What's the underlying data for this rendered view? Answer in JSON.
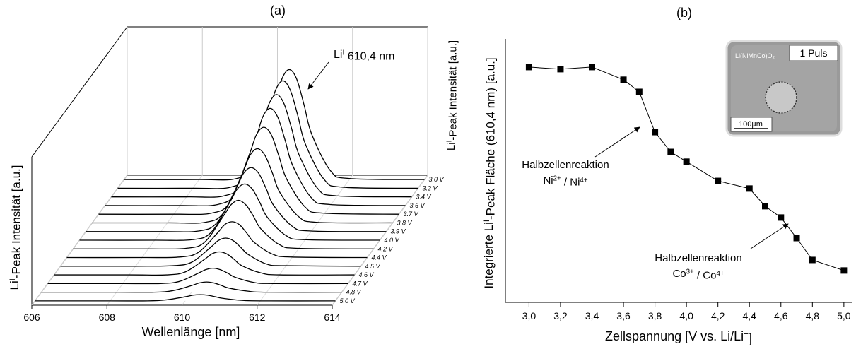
{
  "chart_data": [
    {
      "type": "waterfall",
      "title": "(a)",
      "xlabel": "Wellenlänge [nm]",
      "zlabel": [
        "Li",
        "I",
        "-Peak Intensität [a.u.]"
      ],
      "annotation": [
        "Li",
        "I",
        " 610,4 nm"
      ],
      "x": [
        606,
        608,
        609,
        609.5,
        610,
        610.2,
        610.4,
        610.6,
        610.8,
        611,
        611.5,
        612,
        614
      ],
      "xlim": [
        606,
        614
      ],
      "xticks": [
        606,
        608,
        610,
        612,
        614
      ],
      "zlim": [
        0,
        290
      ],
      "grid": true,
      "series": [
        {
          "name": "3.0 V",
          "color": "#000000",
          "values": [
            0,
            0,
            2,
            30,
            144,
            196,
            215,
            196,
            144,
            88,
            17,
            2,
            0
          ]
        },
        {
          "name": "3.2 V",
          "color": "#000000",
          "values": [
            0,
            0,
            2,
            29,
            141,
            191,
            210,
            191,
            141,
            86,
            17,
            2,
            0
          ]
        },
        {
          "name": "3.4 V",
          "color": "#000000",
          "values": [
            0,
            0,
            2,
            28,
            134,
            182,
            200,
            182,
            134,
            82,
            16,
            2,
            0
          ]
        },
        {
          "name": "3.6 V",
          "color": "#000000",
          "values": [
            0,
            0,
            2,
            27,
            127,
            173,
            190,
            173,
            127,
            78,
            15,
            2,
            0
          ]
        },
        {
          "name": "3.7 V",
          "color": "#000000",
          "values": [
            0,
            0,
            2,
            24,
            114,
            155,
            170,
            155,
            114,
            70,
            14,
            2,
            0
          ]
        },
        {
          "name": "3.8 V",
          "color": "#000000",
          "values": [
            0,
            0,
            1,
            20,
            97,
            132,
            145,
            132,
            97,
            59,
            12,
            1,
            0
          ]
        },
        {
          "name": "3.9 V",
          "color": "#000000",
          "values": [
            0,
            0,
            1,
            18,
            84,
            114,
            125,
            114,
            84,
            51,
            10,
            1,
            0
          ]
        },
        {
          "name": "4.0 V",
          "color": "#000000",
          "values": [
            0,
            0,
            1,
            15,
            74,
            100,
            110,
            100,
            74,
            45,
            9,
            1,
            0
          ]
        },
        {
          "name": "4.2 V",
          "color": "#000000",
          "values": [
            0,
            0,
            1,
            13,
            64,
            86,
            95,
            86,
            64,
            39,
            8,
            1,
            0
          ]
        },
        {
          "name": "4.4 V",
          "color": "#000000",
          "values": [
            0,
            0,
            1,
            10,
            47,
            64,
            70,
            64,
            47,
            29,
            6,
            1,
            0
          ]
        },
        {
          "name": "4.5 V",
          "color": "#000000",
          "values": [
            0,
            0,
            1,
            8,
            37,
            50,
            55,
            50,
            37,
            23,
            4,
            1,
            0
          ]
        },
        {
          "name": "4.6 V",
          "color": "#000000",
          "values": [
            0,
            0,
            0,
            6,
            30,
            41,
            45,
            41,
            30,
            18,
            4,
            0,
            0
          ]
        },
        {
          "name": "4.7 V",
          "color": "#000000",
          "values": [
            0,
            0,
            0,
            4,
            20,
            27,
            30,
            27,
            20,
            12,
            2,
            0,
            0
          ]
        },
        {
          "name": "4.8 V",
          "color": "#000000",
          "values": [
            0,
            0,
            0,
            3,
            13,
            18,
            20,
            18,
            13,
            8,
            2,
            0,
            0
          ]
        },
        {
          "name": "5.0 V",
          "color": "#000000",
          "values": [
            0,
            0,
            0,
            2,
            8,
            11,
            12,
            11,
            8,
            5,
            1,
            0,
            0
          ]
        }
      ]
    },
    {
      "type": "line",
      "title": "(b)",
      "xlabel": [
        "Zellspannung [V vs. Li/Li",
        "+",
        "]"
      ],
      "ylabel": [
        "Integrierte Li",
        "I",
        "-Peak Fläche (610,4 nm) [a.u.]"
      ],
      "x": [
        3.0,
        3.2,
        3.4,
        3.6,
        3.7,
        3.8,
        3.9,
        4.0,
        4.2,
        4.4,
        4.5,
        4.6,
        4.7,
        4.8,
        5.0
      ],
      "series": [
        {
          "color": "#000000",
          "values": [
            89.3,
            88.5,
            89.3,
            84.5,
            79.9,
            64.6,
            57.1,
            53.4,
            46.1,
            43.2,
            36.5,
            32.2,
            24.4,
            16.1,
            12.1
          ]
        }
      ],
      "xlim": [
        2.85,
        5.05
      ],
      "xticks": [
        {
          "value": 3.0,
          "label": "3,0"
        },
        {
          "value": 3.2,
          "label": "3,2"
        },
        {
          "value": 3.4,
          "label": "3,4"
        },
        {
          "value": 3.6,
          "label": "3,6"
        },
        {
          "value": 3.8,
          "label": "3,8"
        },
        {
          "value": 4.0,
          "label": "4,0"
        },
        {
          "value": 4.2,
          "label": "4,2"
        },
        {
          "value": 4.4,
          "label": "4,4"
        },
        {
          "value": 4.6,
          "label": "4,6"
        },
        {
          "value": 4.8,
          "label": "4,8"
        },
        {
          "value": 5.0,
          "label": "5,0"
        }
      ],
      "ylim": [
        0,
        100
      ],
      "annotations": [
        [
          [
            "Halbzellenreaktion"
          ],
          [
            "Ni",
            "2+",
            " / Ni",
            "4+"
          ]
        ],
        [
          [
            "Halbzellenreaktion"
          ],
          [
            "Co",
            "3+",
            " / Co",
            "4+"
          ]
        ]
      ],
      "inset": {
        "material": "Li(NiMnCo)O₂",
        "pulse": "1 Puls",
        "scale": "100µm"
      }
    }
  ]
}
